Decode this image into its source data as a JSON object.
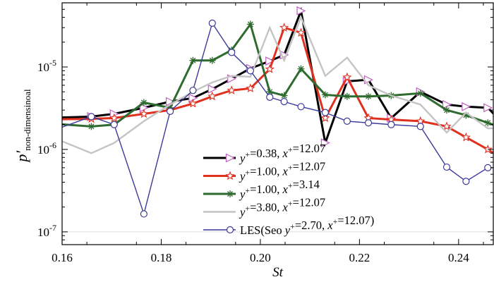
{
  "chart_data": {
    "type": "line",
    "xlabel": "St",
    "ylabel_main": "p′",
    "ylabel_sub": "non-dimensinoal",
    "x_scale": "linear",
    "y_scale": "log",
    "xlim": [
      0.16,
      0.247
    ],
    "ylim": [
      7e-08,
      6e-05
    ],
    "x_ticks": [
      "0.16",
      "0.18",
      "0.20",
      "0.22",
      "0.24"
    ],
    "x_tick_values": [
      0.16,
      0.18,
      0.2,
      0.22,
      0.24
    ],
    "y_ticks": [
      {
        "value": 1e-05,
        "base": "10",
        "exp": "-5"
      },
      {
        "value": 1e-06,
        "base": "10",
        "exp": "-6"
      },
      {
        "value": 1e-07,
        "base": "10",
        "exp": "-7"
      }
    ],
    "grid": false,
    "legend_position": "bottom-center",
    "series": [
      {
        "name": "y+=0.38, x+=12.07",
        "legend_parts": [
          "y",
          "+",
          "=0.38, ",
          "x",
          "+",
          "=12.07"
        ],
        "color": "#000000",
        "marker": "triangle-right",
        "marker_color": "#c060c0",
        "x": [
          0.1557,
          0.1659,
          0.1705,
          0.1765,
          0.1818,
          0.1864,
          0.1903,
          0.1942,
          0.198,
          0.2019,
          0.2048,
          0.2082,
          0.2131,
          0.2175,
          0.2218,
          0.2264,
          0.2323,
          0.2376,
          0.2415,
          0.2459,
          0.2479
        ],
        "y": [
          2.4e-06,
          2.5e-06,
          2.7e-06,
          3.2e-06,
          3.8e-06,
          4.2e-06,
          5.4e-06,
          7.2e-06,
          9.6e-06,
          1.18e-05,
          1.4e-05,
          4.8e-05,
          1.2e-06,
          6.7e-06,
          7e-06,
          2.4e-06,
          5e-06,
          3.5e-06,
          3.3e-06,
          3.2e-06,
          2.4e-06
        ]
      },
      {
        "name": "y+=1.00, x+=12.07",
        "legend_parts": [
          "y",
          "+",
          "=1.00, ",
          "x",
          "+",
          "=12.07"
        ],
        "color": "#e03020",
        "marker": "star",
        "marker_color": "#e03020",
        "x": [
          0.1557,
          0.1659,
          0.1705,
          0.1765,
          0.1818,
          0.1864,
          0.1903,
          0.1942,
          0.198,
          0.2019,
          0.2048,
          0.2082,
          0.2131,
          0.2175,
          0.2218,
          0.2264,
          0.2323,
          0.2376,
          0.2415,
          0.2459,
          0.2479
        ],
        "y": [
          2.3e-06,
          2.35e-06,
          2.4e-06,
          2.7e-06,
          3e-06,
          3.6e-06,
          4.4e-06,
          5.2e-06,
          5.5e-06,
          9.4e-06,
          3e-05,
          2.6e-05,
          2.4e-06,
          7.5e-06,
          2.4e-06,
          2.3e-06,
          2.2e-06,
          1.9e-06,
          1.4e-06,
          1e-06,
          8.3e-07
        ]
      },
      {
        "name": "y+=1.00, x+=3.14",
        "legend_parts": [
          "y",
          "+",
          "=1.00, ",
          "x",
          "+",
          "=3.14"
        ],
        "color": "#2e6b2e",
        "marker": "asterisk",
        "marker_color": "#2e6b2e",
        "x": [
          0.1557,
          0.1659,
          0.1705,
          0.1765,
          0.1818,
          0.1864,
          0.1903,
          0.1942,
          0.198,
          0.2019,
          0.2048,
          0.2082,
          0.2131,
          0.2175,
          0.2218,
          0.2264,
          0.2323,
          0.2376,
          0.2415,
          0.2459,
          0.2479
        ],
        "y": [
          2.1e-06,
          1.9e-06,
          2e-06,
          3.7e-06,
          3.2e-06,
          1.2e-05,
          1.2e-05,
          1.6e-05,
          3.3e-05,
          5e-06,
          4.5e-06,
          9.5e-06,
          4.6e-06,
          4.4e-06,
          4.4e-06,
          4.5e-06,
          4.8e-06,
          3e-06,
          2.6e-06,
          2.1e-06,
          1.9e-06
        ]
      },
      {
        "name": "y+=3.80, x+=12.07",
        "legend_parts": [
          "y",
          "+",
          "=3.80, ",
          "x",
          "+",
          "=12.07"
        ],
        "color": "#c4c4c4",
        "marker": "none",
        "marker_color": "#c4c4c4",
        "x": [
          0.1557,
          0.1659,
          0.1705,
          0.1765,
          0.1818,
          0.1864,
          0.1903,
          0.1942,
          0.198,
          0.2019,
          0.2048,
          0.2082,
          0.2131,
          0.2175,
          0.2218,
          0.2264,
          0.2323,
          0.2376,
          0.2415,
          0.2459,
          0.2479
        ],
        "y": [
          1.6e-06,
          9e-07,
          1.2e-06,
          2.2e-06,
          3.5e-06,
          5e-06,
          6.5e-06,
          7.8e-06,
          7.6e-06,
          3e-05,
          1.2e-05,
          4e-05,
          7.8e-06,
          1.3e-05,
          6e-06,
          4.5e-06,
          3.5e-06,
          1.6e-06,
          2.8e-06,
          1.8e-06,
          1.8e-06
        ]
      },
      {
        "name": "LES(Seo y+=2.70, x+=12.07)",
        "legend_parts": [
          "LES(Seo ",
          "y",
          "+",
          "=2.70, ",
          "x",
          "+",
          "=12.07)"
        ],
        "color": "#3a3a9a",
        "marker": "circle",
        "marker_color": "#3a3a9a",
        "x": [
          0.1557,
          0.1659,
          0.1705,
          0.1765,
          0.1818,
          0.1864,
          0.1903,
          0.1942,
          0.198,
          0.2019,
          0.2048,
          0.2082,
          0.2131,
          0.2175,
          0.2218,
          0.2264,
          0.2323,
          0.2376,
          0.2415,
          0.2459,
          0.2479
        ],
        "y": [
          1.5e-06,
          2.5e-06,
          2e-06,
          1.65e-07,
          2.9e-06,
          5.2e-06,
          3.4e-05,
          1.5e-05,
          9e-06,
          4.3e-06,
          3.8e-06,
          3.3e-06,
          2.8e-06,
          2.2e-06,
          2.1e-06,
          2e-06,
          1.9e-06,
          6.1e-07,
          4.1e-07,
          6e-07,
          6e-07
        ]
      }
    ]
  }
}
